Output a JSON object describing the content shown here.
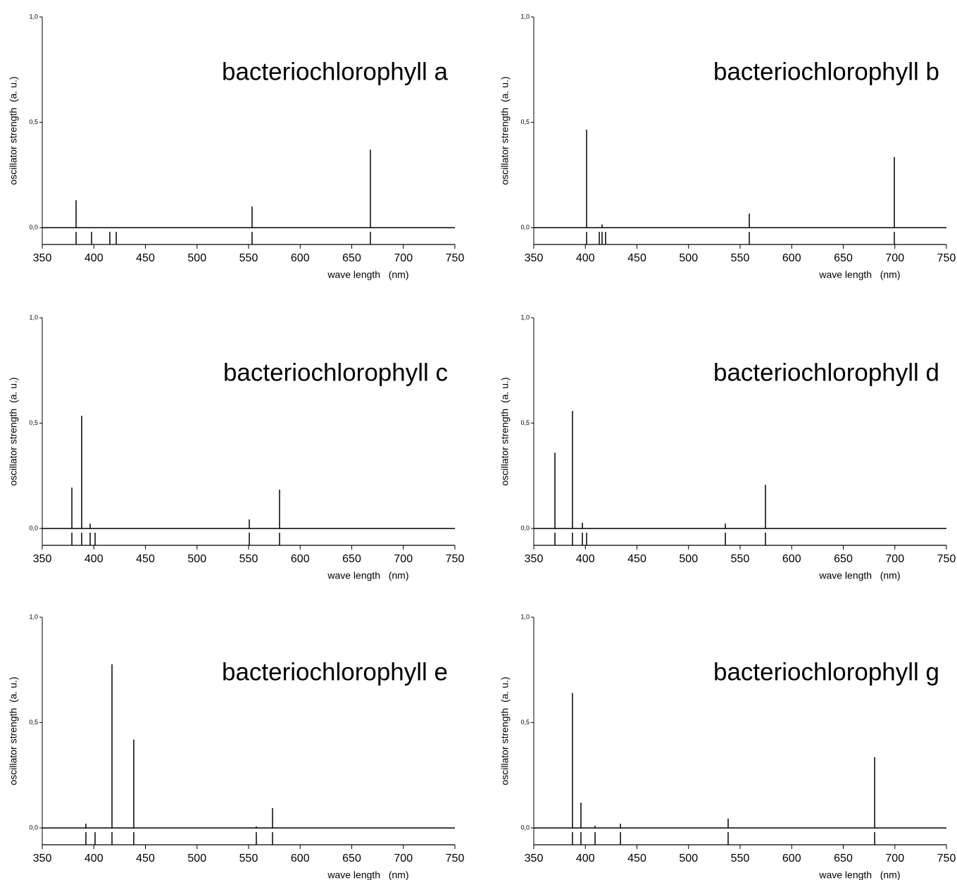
{
  "chart_data": [
    {
      "type": "stem",
      "title": "bacteriochlorophyll a",
      "x_label": "wave length   (nm)",
      "y_label": "oscillator strength  (a. u.)",
      "x": [
        382.8,
        397.8,
        415.5,
        421.7,
        553.4,
        668.1
      ],
      "values": [
        0.13,
        0,
        0,
        0,
        0.1,
        0.37
      ],
      "color": "#000000",
      "xlim": [
        350,
        750
      ],
      "ylim": [
        -0.08,
        1
      ],
      "xticks": [
        350,
        400,
        450,
        500,
        550,
        600,
        650,
        700,
        750
      ],
      "yticks": [
        {
          "value": 0,
          "label": "0,0"
        },
        {
          "value": 0.5,
          "label": "0,5"
        },
        {
          "value": 1,
          "label": "1,0"
        }
      ]
    },
    {
      "type": "stem",
      "title": "bacteriochlorophyll b",
      "x_label": "wave length   (nm)",
      "y_label": "oscillator strength  (a. u.)",
      "x": [
        401.2,
        413.5,
        416.2,
        419.6,
        558.9,
        699.5
      ],
      "values": [
        0.465,
        0,
        0.015,
        0,
        0.067,
        0.335
      ],
      "color": "#000000",
      "xlim": [
        350,
        750
      ],
      "ylim": [
        -0.08,
        1
      ],
      "xticks": [
        350,
        400,
        450,
        500,
        550,
        600,
        650,
        700,
        750
      ],
      "yticks": [
        {
          "value": 0,
          "label": "0,0"
        },
        {
          "value": 0.5,
          "label": "0,5"
        },
        {
          "value": 1,
          "label": "1,0"
        }
      ]
    },
    {
      "type": "stem",
      "title": "bacteriochlorophyll c",
      "x_label": "wave length   (nm)",
      "y_label": "oscillator strength  (a. u.)",
      "x": [
        378.7,
        388.2,
        396.4,
        401.2,
        550.7,
        580.0
      ],
      "values": [
        0.194,
        0.535,
        0.023,
        0,
        0.043,
        0.184
      ],
      "color": "#000000",
      "xlim": [
        350,
        750
      ],
      "ylim": [
        -0.08,
        1
      ],
      "xticks": [
        350,
        400,
        450,
        500,
        550,
        600,
        650,
        700,
        750
      ],
      "yticks": [
        {
          "value": 0,
          "label": "0,0"
        },
        {
          "value": 0.5,
          "label": "0,5"
        },
        {
          "value": 1,
          "label": "1,0"
        }
      ]
    },
    {
      "type": "stem",
      "title": "bacteriochlorophyll d",
      "x_label": "wave length   (nm)",
      "y_label": "oscillator strength  (a. u.)",
      "x": [
        370.5,
        387.5,
        397.1,
        401.2,
        535.7,
        574.6
      ],
      "values": [
        0.36,
        0.558,
        0.027,
        0,
        0.023,
        0.207
      ],
      "color": "#000000",
      "xlim": [
        350,
        750
      ],
      "ylim": [
        -0.08,
        1
      ],
      "xticks": [
        350,
        400,
        450,
        500,
        550,
        600,
        650,
        700,
        750
      ],
      "yticks": [
        {
          "value": 0,
          "label": "0,0"
        },
        {
          "value": 0.5,
          "label": "0,5"
        },
        {
          "value": 1,
          "label": "1,0"
        }
      ]
    },
    {
      "type": "stem",
      "title": "bacteriochlorophyll e",
      "x_label": "wave length   (nm)",
      "y_label": "oscillator strength  (a. u.)",
      "x": [
        392.3,
        401.2,
        417.6,
        438.7,
        557.5,
        573.2
      ],
      "values": [
        0.02,
        0,
        0.777,
        0.419,
        0.007,
        0.094
      ],
      "color": "#000000",
      "xlim": [
        350,
        750
      ],
      "ylim": [
        -0.08,
        1
      ],
      "xticks": [
        350,
        400,
        450,
        500,
        550,
        600,
        650,
        700,
        750
      ],
      "yticks": [
        {
          "value": 0,
          "label": "0,0"
        },
        {
          "value": 0.5,
          "label": "0,5"
        },
        {
          "value": 1,
          "label": "1,0"
        }
      ]
    },
    {
      "type": "stem",
      "title": "bacteriochlorophyll g",
      "x_label": "wave length   (nm)",
      "y_label": "oscillator strength  (a. u.)",
      "x": [
        387.5,
        395.7,
        409.4,
        434.0,
        538.4,
        680.4
      ],
      "values": [
        0.64,
        0.12,
        0.01,
        0.02,
        0.044,
        0.336
      ],
      "color": "#000000",
      "xlim": [
        350,
        750
      ],
      "ylim": [
        -0.08,
        1
      ],
      "xticks": [
        350,
        400,
        450,
        500,
        550,
        600,
        650,
        700,
        750
      ],
      "yticks": [
        {
          "value": 0,
          "label": "0,0"
        },
        {
          "value": 0.5,
          "label": "0,5"
        },
        {
          "value": 1,
          "label": "1,0"
        }
      ]
    }
  ]
}
